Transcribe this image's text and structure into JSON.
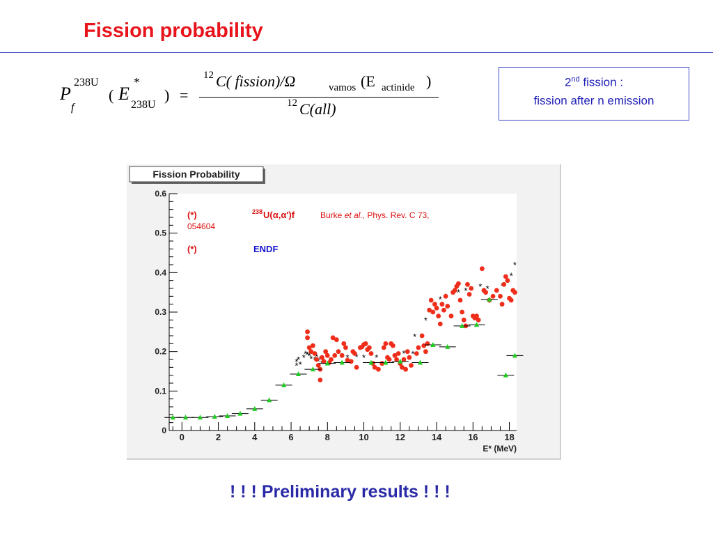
{
  "slide": {
    "title": "Fission probability",
    "preliminary": "! ! ! Preliminary results ! ! !"
  },
  "formula": {
    "lhs_symbol": "P",
    "lhs_sub": "f",
    "lhs_sup": "238U",
    "open": "(",
    "energy": "E",
    "energy_sup": "*",
    "energy_sub": "238U",
    "close": ")",
    "equals": "=",
    "num_prefix": "12",
    "num_main": "C( fission)/Ω",
    "num_sub": "vamos",
    "num_paren_open": "(E",
    "num_paren_sub": "actinide",
    "num_paren_close": ")",
    "den_prefix": "12",
    "den_main": "C(all)"
  },
  "callout": {
    "line1_prefix": "2",
    "line1_sup": "nd",
    "line1_rest": " fission :",
    "line2": "fission after n emission"
  },
  "colors": {
    "title": "#e8141c",
    "rule": "#3b48c8",
    "callout_text": "#1f1fb8",
    "burke": "#ee2e1a",
    "endf": "#22cc22",
    "asterisk": "#000000",
    "legend_red": "#dd1111",
    "legend_blue": "#1515cc"
  },
  "chart_data": {
    "type": "scatter",
    "title": "Fission Probability",
    "xlabel": "E* (MeV)",
    "xlim": [
      -0.7,
      18.4
    ],
    "ylim": [
      0,
      0.6
    ],
    "xticks": [
      0,
      2,
      4,
      6,
      8,
      10,
      12,
      14,
      16,
      18
    ],
    "xtick_labels": [
      "0",
      "2",
      "4",
      "6",
      "8",
      "10",
      "12",
      "14",
      "16",
      "18"
    ],
    "yticks": [
      0,
      0.1,
      0.2,
      0.3,
      0.4,
      0.5,
      0.6
    ],
    "ytick_labels": [
      "0",
      "0.1",
      "0.2",
      "0.3",
      "0.4",
      "0.5",
      "0.6"
    ],
    "grid": false,
    "legend": {
      "row1_marker": "(*)",
      "row1_sup": "238",
      "row1_reaction": "U(α,α')f",
      "row1_ref_a": "Burke ",
      "row1_ref_em": "et al.",
      "row1_ref_b": ", Phys. Rev. C 73,",
      "row1_ref_c": "054604",
      "row2_marker": "(*)",
      "row2_label": "ENDF"
    },
    "series": [
      {
        "name": "Burke et al.",
        "marker": "asterisk",
        "points": [
          [
            6.3,
            0.175
          ],
          [
            6.3,
            0.165
          ],
          [
            6.4,
            0.18
          ],
          [
            6.5,
            0.168
          ],
          [
            6.7,
            0.185
          ],
          [
            6.8,
            0.195
          ],
          [
            6.9,
            0.192
          ],
          [
            7.0,
            0.19
          ],
          [
            7.1,
            0.183
          ],
          [
            7.3,
            0.18
          ],
          [
            7.4,
            0.187
          ],
          [
            7.5,
            0.176
          ],
          [
            7.6,
            0.182
          ],
          [
            7.7,
            0.172
          ],
          [
            9.1,
            0.185
          ],
          [
            9.6,
            0.187
          ],
          [
            10.0,
            0.185
          ],
          [
            10.7,
            0.185
          ],
          [
            12.2,
            0.196
          ],
          [
            12.7,
            0.195
          ],
          [
            12.8,
            0.238
          ],
          [
            13.4,
            0.28
          ],
          [
            14.2,
            0.333
          ],
          [
            14.5,
            0.34
          ],
          [
            15.2,
            0.35
          ],
          [
            15.6,
            0.355
          ],
          [
            16.4,
            0.365
          ],
          [
            16.8,
            0.36
          ],
          [
            17.6,
            0.367
          ],
          [
            18.1,
            0.393
          ],
          [
            18.3,
            0.42
          ]
        ]
      },
      {
        "name": "238U(α,α')f",
        "marker": "dot",
        "points": [
          [
            6.9,
            0.25
          ],
          [
            6.9,
            0.235
          ],
          [
            7.0,
            0.21
          ],
          [
            7.1,
            0.2
          ],
          [
            7.2,
            0.215
          ],
          [
            7.3,
            0.195
          ],
          [
            7.4,
            0.18
          ],
          [
            7.5,
            0.165
          ],
          [
            7.6,
            0.155
          ],
          [
            7.6,
            0.128
          ],
          [
            7.7,
            0.185
          ],
          [
            7.8,
            0.175
          ],
          [
            7.9,
            0.2
          ],
          [
            8.0,
            0.19
          ],
          [
            8.1,
            0.172
          ],
          [
            8.2,
            0.18
          ],
          [
            8.3,
            0.235
          ],
          [
            8.4,
            0.19
          ],
          [
            8.5,
            0.23
          ],
          [
            8.6,
            0.2
          ],
          [
            8.8,
            0.19
          ],
          [
            8.9,
            0.22
          ],
          [
            9.0,
            0.21
          ],
          [
            9.1,
            0.178
          ],
          [
            9.3,
            0.175
          ],
          [
            9.4,
            0.2
          ],
          [
            9.5,
            0.195
          ],
          [
            9.6,
            0.16
          ],
          [
            9.8,
            0.21
          ],
          [
            9.9,
            0.212
          ],
          [
            10.0,
            0.218
          ],
          [
            10.1,
            0.22
          ],
          [
            10.2,
            0.205
          ],
          [
            10.3,
            0.21
          ],
          [
            10.4,
            0.195
          ],
          [
            10.5,
            0.17
          ],
          [
            10.6,
            0.16
          ],
          [
            10.8,
            0.155
          ],
          [
            11.0,
            0.17
          ],
          [
            11.1,
            0.21
          ],
          [
            11.2,
            0.22
          ],
          [
            11.3,
            0.185
          ],
          [
            11.4,
            0.18
          ],
          [
            11.5,
            0.22
          ],
          [
            11.6,
            0.215
          ],
          [
            11.7,
            0.19
          ],
          [
            11.8,
            0.18
          ],
          [
            11.9,
            0.195
          ],
          [
            12.0,
            0.17
          ],
          [
            12.1,
            0.16
          ],
          [
            12.2,
            0.18
          ],
          [
            12.3,
            0.155
          ],
          [
            12.4,
            0.2
          ],
          [
            12.5,
            0.185
          ],
          [
            12.6,
            0.165
          ],
          [
            12.9,
            0.195
          ],
          [
            13.0,
            0.21
          ],
          [
            13.2,
            0.24
          ],
          [
            13.3,
            0.215
          ],
          [
            13.4,
            0.2
          ],
          [
            13.5,
            0.22
          ],
          [
            13.6,
            0.305
          ],
          [
            13.7,
            0.33
          ],
          [
            13.8,
            0.3
          ],
          [
            13.9,
            0.32
          ],
          [
            14.0,
            0.31
          ],
          [
            14.1,
            0.29
          ],
          [
            14.2,
            0.27
          ],
          [
            14.3,
            0.32
          ],
          [
            14.4,
            0.305
          ],
          [
            14.5,
            0.34
          ],
          [
            14.6,
            0.315
          ],
          [
            14.8,
            0.29
          ],
          [
            14.9,
            0.35
          ],
          [
            15.0,
            0.355
          ],
          [
            15.1,
            0.365
          ],
          [
            15.2,
            0.372
          ],
          [
            15.3,
            0.33
          ],
          [
            15.4,
            0.3
          ],
          [
            15.5,
            0.28
          ],
          [
            15.6,
            0.265
          ],
          [
            15.7,
            0.37
          ],
          [
            15.8,
            0.345
          ],
          [
            15.9,
            0.36
          ],
          [
            16.0,
            0.29
          ],
          [
            16.1,
            0.285
          ],
          [
            16.2,
            0.29
          ],
          [
            16.3,
            0.28
          ],
          [
            16.5,
            0.41
          ],
          [
            16.6,
            0.355
          ],
          [
            16.7,
            0.35
          ],
          [
            16.9,
            0.33
          ],
          [
            17.1,
            0.34
          ],
          [
            17.3,
            0.355
          ],
          [
            17.5,
            0.34
          ],
          [
            17.6,
            0.32
          ],
          [
            17.7,
            0.37
          ],
          [
            17.8,
            0.39
          ],
          [
            17.9,
            0.38
          ],
          [
            18.0,
            0.335
          ],
          [
            18.1,
            0.33
          ],
          [
            18.2,
            0.355
          ],
          [
            18.3,
            0.35
          ]
        ]
      },
      {
        "name": "ENDF",
        "marker": "triangle",
        "points": [
          [
            -0.5,
            0.033
          ],
          [
            0.2,
            0.033
          ],
          [
            1.0,
            0.033
          ],
          [
            1.8,
            0.035
          ],
          [
            2.5,
            0.037
          ],
          [
            3.2,
            0.043
          ],
          [
            4.0,
            0.055
          ],
          [
            4.8,
            0.077
          ],
          [
            5.6,
            0.115
          ],
          [
            6.4,
            0.143
          ],
          [
            7.2,
            0.155
          ],
          [
            8.0,
            0.17
          ],
          [
            8.8,
            0.172
          ],
          [
            10.4,
            0.172
          ],
          [
            11.2,
            0.172
          ],
          [
            12.0,
            0.175
          ],
          [
            13.1,
            0.172
          ],
          [
            13.8,
            0.217
          ],
          [
            14.6,
            0.212
          ],
          [
            15.4,
            0.265
          ],
          [
            16.2,
            0.268
          ],
          [
            16.9,
            0.332
          ],
          [
            17.8,
            0.14
          ],
          [
            18.3,
            0.19
          ]
        ]
      }
    ]
  }
}
